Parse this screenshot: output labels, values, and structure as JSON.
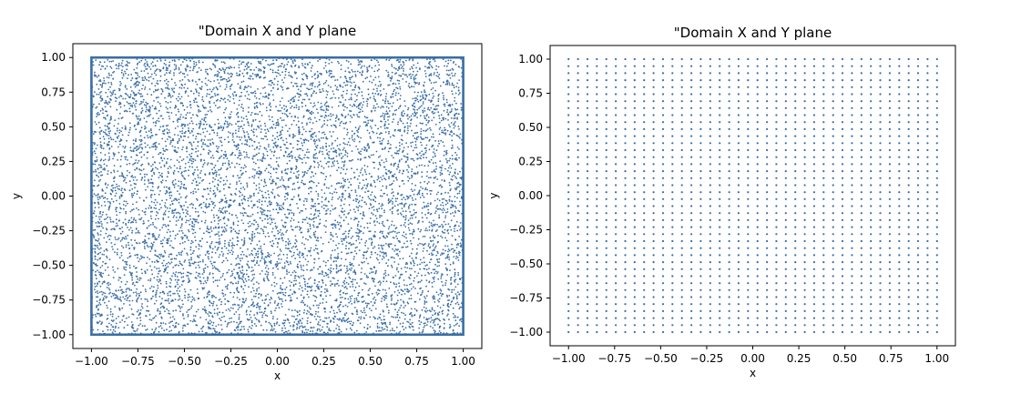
{
  "chart_data": [
    {
      "type": "scatter",
      "title": "\"Domain X and Y plane",
      "xlabel": "x",
      "ylabel": "y",
      "xlim": [
        -1.1,
        1.1
      ],
      "ylim": [
        -1.1,
        1.1
      ],
      "xticks": [
        "−1.00",
        "−0.75",
        "−0.50",
        "−0.25",
        "0.00",
        "0.25",
        "0.50",
        "0.75",
        "1.00"
      ],
      "yticks": [
        "−1.00",
        "−0.75",
        "−0.50",
        "−0.25",
        "0.00",
        "0.25",
        "0.50",
        "0.75",
        "1.00"
      ],
      "tick_values": [
        -1.0,
        -0.75,
        -0.5,
        -0.25,
        0.0,
        0.25,
        0.5,
        0.75,
        1.0
      ],
      "grid": false,
      "point_color": "#3a6ea5",
      "series": [
        {
          "kind": "uniform random points",
          "count": 8000,
          "x_range": [
            -1.0,
            1.0
          ],
          "y_range": [
            -1.0,
            1.0
          ]
        },
        {
          "kind": "boundary",
          "rectangle": {
            "x": [
              -1.0,
              1.0
            ],
            "y": [
              -1.0,
              1.0
            ]
          }
        }
      ]
    },
    {
      "type": "scatter",
      "title": "\"Domain X and Y plane",
      "xlabel": "x",
      "ylabel": "y",
      "xlim": [
        -1.1,
        1.1
      ],
      "ylim": [
        -1.1,
        1.1
      ],
      "xticks": [
        "−1.00",
        "−0.75",
        "−0.50",
        "−0.25",
        "0.00",
        "0.25",
        "0.50",
        "0.75",
        "1.00"
      ],
      "yticks": [
        "−1.00",
        "−0.75",
        "−0.50",
        "−0.25",
        "0.00",
        "0.25",
        "0.50",
        "0.75",
        "1.00"
      ],
      "tick_values": [
        -1.0,
        -0.75,
        -0.5,
        -0.25,
        0.0,
        0.25,
        0.5,
        0.75,
        1.0
      ],
      "grid": false,
      "point_color": "#3a6ea5",
      "series": [
        {
          "kind": "uniform grid points",
          "x_range": [
            -1.0,
            1.0
          ],
          "y_range": [
            -1.0,
            1.0
          ],
          "nx": 40,
          "ny": 40
        }
      ]
    }
  ]
}
